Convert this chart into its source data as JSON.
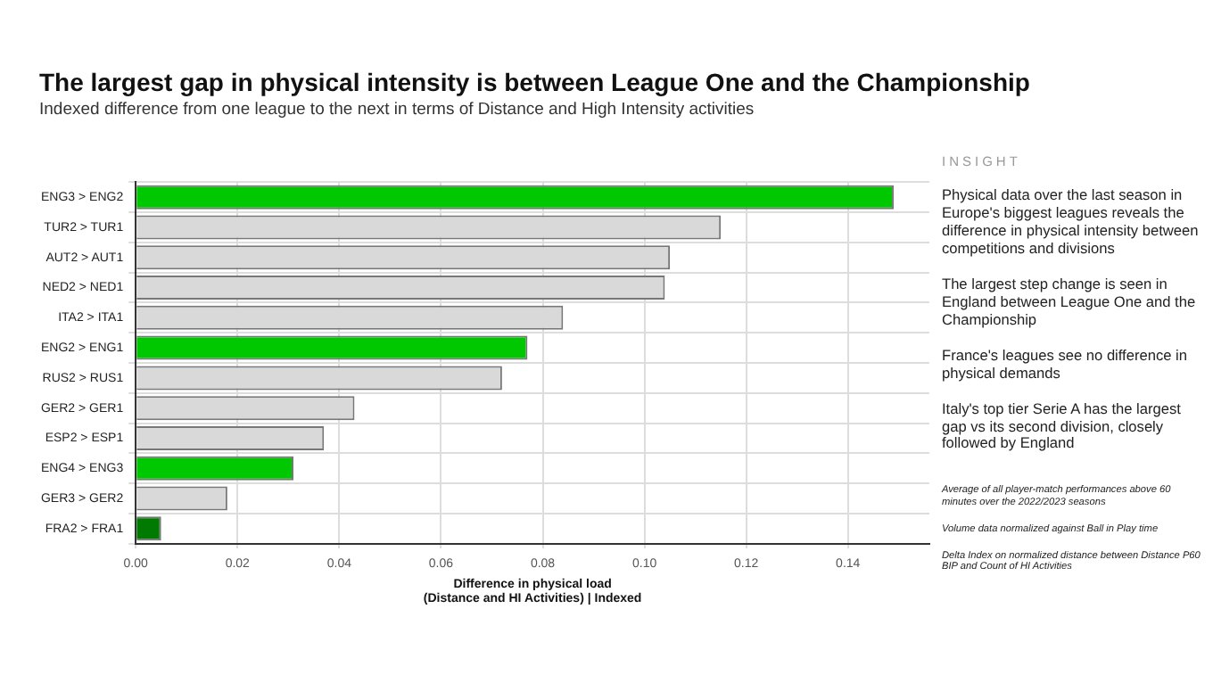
{
  "chart_data": {
    "type": "bar",
    "orientation": "horizontal",
    "title": "The largest gap in physical intensity is between League One and the Championship",
    "subtitle": "Indexed difference from one league to the next in terms of Distance and High Intensity activities",
    "xlabel": "Difference in physical load\n(Distance and HI Activities) | Indexed",
    "categories": [
      "ENG3 > ENG2",
      "TUR2 > TUR1",
      "AUT2 > AUT1",
      "NED2 > NED1",
      "ITA2 > ITA1",
      "ENG2 > ENG1",
      "RUS2 > RUS1",
      "GER2 > GER1",
      "ESP2 > ESP1",
      "ENG4 > ENG3",
      "GER3 > GER2",
      "FRA2 > FRA1"
    ],
    "values": [
      0.149,
      0.115,
      0.105,
      0.104,
      0.084,
      0.077,
      0.072,
      0.043,
      0.037,
      0.031,
      0.018,
      0.005
    ],
    "colors": [
      "#00c800",
      "#d9d9d9",
      "#d9d9d9",
      "#d9d9d9",
      "#d9d9d9",
      "#00c800",
      "#d9d9d9",
      "#d9d9d9",
      "#d9d9d9",
      "#00c800",
      "#d9d9d9",
      "#007a00"
    ],
    "xlim": [
      0,
      0.156
    ],
    "xticks": [
      {
        "value": 0,
        "label": "0.00"
      },
      {
        "value": 0.02,
        "label": "0.02"
      },
      {
        "value": 0.04,
        "label": "0.04"
      },
      {
        "value": 0.06,
        "label": "0.06"
      },
      {
        "value": 0.08,
        "label": "0.08"
      },
      {
        "value": 0.1,
        "label": "0.10"
      },
      {
        "value": 0.12,
        "label": "0.12"
      },
      {
        "value": 0.14,
        "label": "0.14"
      }
    ],
    "grid": true,
    "annotations": [
      "INSIGHT",
      "Physical data over the last season in Europe's biggest leagues reveals the difference in physical intensity between competitions and divisions",
      "The largest step change is seen in England between League One and the Championship",
      "France's leagues see no difference in physical demands",
      "Italy's top tier Serie A has the largest gap vs its second division, closely followed by England",
      "Average of all player-match performances above 60 minutes over the  2022/2023 seasons",
      "Volume data normalized against Ball in Play time",
      "Delta Index on normalized distance between Distance P60 BIP and Count of HI Activities"
    ]
  }
}
